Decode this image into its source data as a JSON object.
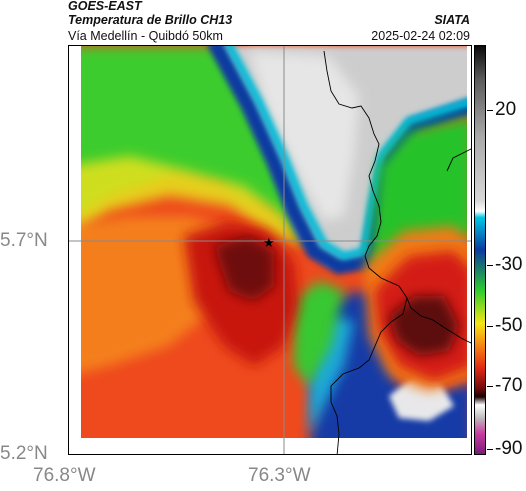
{
  "header": {
    "satellite": "GOES-EAST",
    "product": "Temperatura de Brillo CH13",
    "route": "Vía Medellín - Quibdó 50km",
    "agency": "SIATA",
    "timestamp": "2025-02-24 02:09"
  },
  "axes": {
    "lat_labels": [
      "5.7°N",
      "5.2°N"
    ],
    "lon_labels": [
      "76.8°W",
      "76.3°W"
    ],
    "gridlines": [
      "76.3°W",
      "5.7°N"
    ]
  },
  "colorbar": {
    "tick_labels": [
      "20",
      "-30",
      "-50",
      "-70",
      "-90"
    ],
    "colors": {
      "warm_gray": "#cfcfcf",
      "cyan": "#00c8e6",
      "blue": "#0a3aa0",
      "green": "#2ecc2e",
      "yellow": "#f5e614",
      "orange": "#f57a14",
      "red": "#e02814",
      "dark_red": "#6e0a0a",
      "magenta": "#c83ca0"
    }
  },
  "map": {
    "marker_icon": "star-icon",
    "boundary_color": "#000000"
  }
}
